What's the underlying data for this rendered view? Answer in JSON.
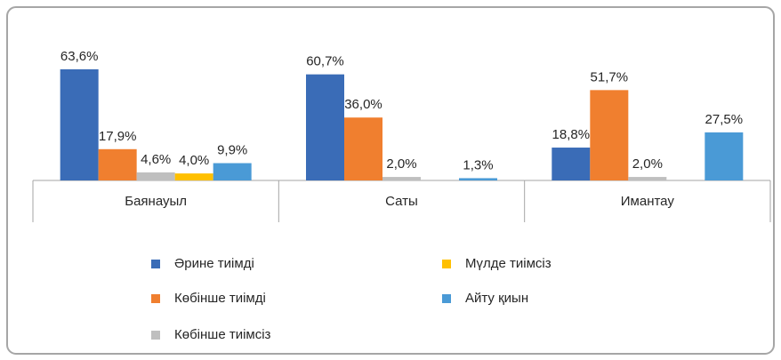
{
  "chart_data": {
    "type": "bar",
    "categories": [
      "Баянауыл",
      "Саты",
      "Имантау"
    ],
    "series": [
      {
        "name": "Әрине тиімді",
        "color": "#3a6cb7",
        "values": [
          63.6,
          60.7,
          18.8
        ],
        "value_labels": [
          "63,6%",
          "60,7%",
          "18,8%"
        ]
      },
      {
        "name": "Көбінше тиімді",
        "color": "#f07f2f",
        "values": [
          17.9,
          36.0,
          51.7
        ],
        "value_labels": [
          "17,9%",
          "36,0%",
          "51,7%"
        ]
      },
      {
        "name": "Көбінше тиімсіз",
        "color": "#bfbfbf",
        "values": [
          4.6,
          2.0,
          2.0
        ],
        "value_labels": [
          "4,6%",
          "2,0%",
          "2,0%"
        ]
      },
      {
        "name": "Мүлде тиімсіз",
        "color": "#ffc000",
        "values": [
          4.0,
          null,
          null
        ],
        "value_labels": [
          "4,0%",
          null,
          null
        ]
      },
      {
        "name": "Айту қиын",
        "color": "#4a9ad6",
        "values": [
          9.9,
          1.3,
          27.5
        ],
        "value_labels": [
          "9,9%",
          "1,3%",
          "27,5%"
        ]
      }
    ]
  }
}
